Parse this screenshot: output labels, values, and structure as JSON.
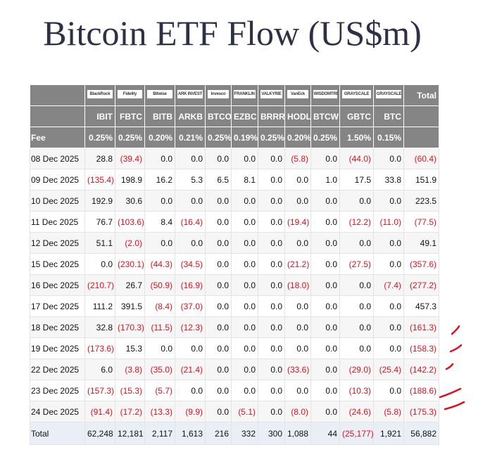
{
  "title": "Bitcoin ETF Flow (US$m)",
  "table": {
    "logos": [
      "BlackRock",
      "Fidelity",
      "Bitwise",
      "ARK INVEST",
      "Invesco",
      "FRANKLIN TEMPLETON",
      "VALKYRIE",
      "VanEck",
      "WISDOMTREE",
      "GRAYSCALE",
      "GRAYSCALE"
    ],
    "total_header": "Total",
    "tickers": [
      "IBIT",
      "FBTC",
      "BITB",
      "ARKB",
      "BTCO",
      "EZBC",
      "BRRR",
      "HODL",
      "BTCW",
      "GBTC",
      "BTC"
    ],
    "fee": {
      "label": "Fee",
      "values": [
        "0.25%",
        "0.25%",
        "0.20%",
        "0.21%",
        "0.25%",
        "0.19%",
        "0.25%",
        "0.20%",
        "0.25%",
        "1.50%",
        "0.15%"
      ]
    },
    "rows": [
      [
        "08 Dec 2025",
        "28.8",
        "(39.4)",
        "0.0",
        "0.0",
        "0.0",
        "0.0",
        "0.0",
        "(5.8)",
        "0.0",
        "(44.0)",
        "0.0",
        "(60.4)"
      ],
      [
        "09 Dec 2025",
        "(135.4)",
        "198.9",
        "16.2",
        "5.3",
        "6.5",
        "8.1",
        "0.0",
        "0.0",
        "1.0",
        "17.5",
        "33.8",
        "151.9"
      ],
      [
        "10 Dec 2025",
        "192.9",
        "30.6",
        "0.0",
        "0.0",
        "0.0",
        "0.0",
        "0.0",
        "0.0",
        "0.0",
        "0.0",
        "0.0",
        "223.5"
      ],
      [
        "11 Dec 2025",
        "76.7",
        "(103.6)",
        "8.4",
        "(16.4)",
        "0.0",
        "0.0",
        "0.0",
        "(19.4)",
        "0.0",
        "(12.2)",
        "(11.0)",
        "(77.5)"
      ],
      [
        "12 Dec 2025",
        "51.1",
        "(2.0)",
        "0.0",
        "0.0",
        "0.0",
        "0.0",
        "0.0",
        "0.0",
        "0.0",
        "0.0",
        "0.0",
        "49.1"
      ],
      [
        "15 Dec 2025",
        "0.0",
        "(230.1)",
        "(44.3)",
        "(34.5)",
        "0.0",
        "0.0",
        "0.0",
        "(21.2)",
        "0.0",
        "(27.5)",
        "0.0",
        "(357.6)"
      ],
      [
        "16 Dec 2025",
        "(210.7)",
        "26.7",
        "(50.9)",
        "(16.9)",
        "0.0",
        "0.0",
        "0.0",
        "(18.0)",
        "0.0",
        "0.0",
        "(7.4)",
        "(277.2)"
      ],
      [
        "17 Dec 2025",
        "111.2",
        "391.5",
        "(8.4)",
        "(37.0)",
        "0.0",
        "0.0",
        "0.0",
        "0.0",
        "0.0",
        "0.0",
        "0.0",
        "457.3"
      ],
      [
        "18 Dec 2025",
        "32.8",
        "(170.3)",
        "(11.5)",
        "(12.3)",
        "0.0",
        "0.0",
        "0.0",
        "0.0",
        "0.0",
        "0.0",
        "0.0",
        "(161.3)"
      ],
      [
        "19 Dec 2025",
        "(173.6)",
        "15.3",
        "0.0",
        "0.0",
        "0.0",
        "0.0",
        "0.0",
        "0.0",
        "0.0",
        "0.0",
        "0.0",
        "(158.3)"
      ],
      [
        "22 Dec 2025",
        "6.0",
        "(3.8)",
        "(35.0)",
        "(21.4)",
        "0.0",
        "0.0",
        "0.0",
        "(33.6)",
        "0.0",
        "(29.0)",
        "(25.4)",
        "(142.2)"
      ],
      [
        "23 Dec 2025",
        "(157.3)",
        "(15.3)",
        "(5.7)",
        "0.0",
        "0.0",
        "0.0",
        "0.0",
        "0.0",
        "0.0",
        "(10.3)",
        "0.0",
        "(188.6)"
      ],
      [
        "24 Dec 2025",
        "(91.4)",
        "(17.2)",
        "(13.3)",
        "(9.9)",
        "0.0",
        "(5.1)",
        "0.0",
        "(8.0)",
        "0.0",
        "(24.6)",
        "(5.8)",
        "(175.3)"
      ]
    ],
    "total": [
      "Total",
      "62,248",
      "12,181",
      "2,117",
      "1,613",
      "216",
      "332",
      "300",
      "1,088",
      "44",
      "(25,177)",
      "1,921",
      "56,882"
    ]
  }
}
